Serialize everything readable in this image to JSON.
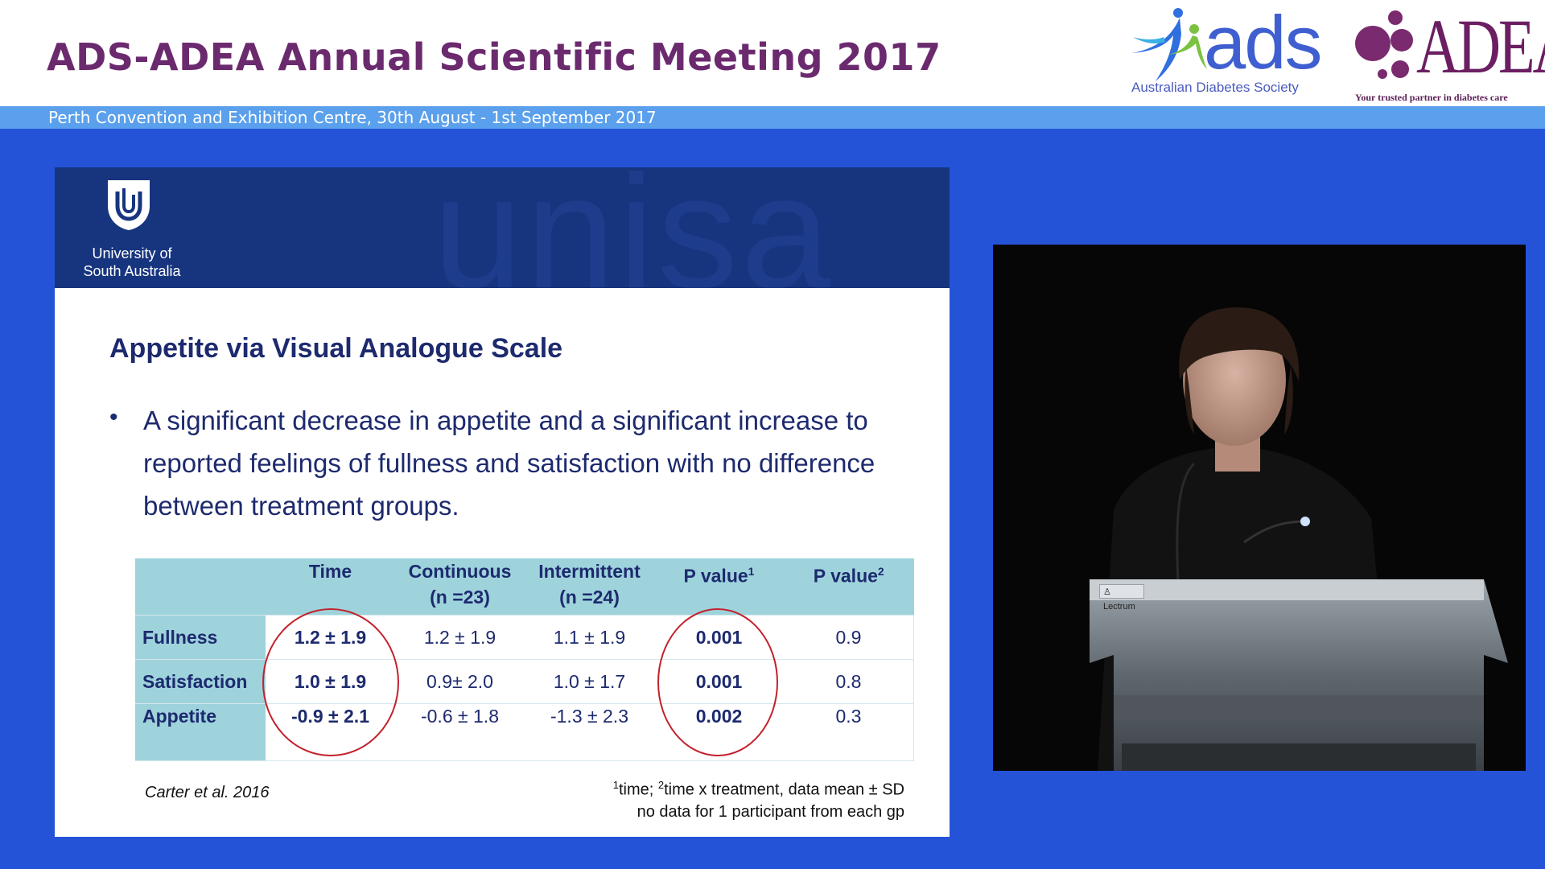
{
  "header": {
    "title": "ADS-ADEA Annual Scientific Meeting 2017",
    "venue": "Perth Convention and Exhibition Centre, 30th August - 1st September 2017",
    "title_color": "#6b2a6e",
    "band_color": "#5aa0ec"
  },
  "logos": {
    "ads_word": "ads",
    "ads_subtitle": "Australian Diabetes Society",
    "adea_word": "ADEA",
    "adea_tagline": "Your trusted partner in diabetes care"
  },
  "slide": {
    "university": "University of South Australia",
    "watermark": "unisa",
    "title": "Appetite via Visual Analogue Scale",
    "bullet": "A significant decrease in appetite and a significant increase to reported feelings of fullness and satisfaction with no difference between treatment groups.",
    "table": {
      "headers": [
        {
          "main": "",
          "sub": "",
          "sup": ""
        },
        {
          "main": "Time",
          "sub": "",
          "sup": ""
        },
        {
          "main": "Continuous",
          "sub": "(n =23)",
          "sup": ""
        },
        {
          "main": "Intermittent",
          "sub": "(n =24)",
          "sup": ""
        },
        {
          "main": "P value",
          "sub": "",
          "sup": "1"
        },
        {
          "main": "P value",
          "sub": "",
          "sup": "2"
        }
      ],
      "rows": [
        {
          "label": "Fullness",
          "time": "1.2 ± 1.9",
          "continuous": "1.2 ± 1.9",
          "intermittent": "1.1 ± 1.9",
          "p1": "0.001",
          "p2": "0.9"
        },
        {
          "label": "Satisfaction",
          "time": "1.0 ± 1.9",
          "continuous": "0.9± 2.0",
          "intermittent": "1.0 ± 1.7",
          "p1": "0.001",
          "p2": "0.8"
        },
        {
          "label": "Appetite",
          "time": "-0.9 ± 2.1",
          "continuous": "-0.6 ± 1.8",
          "intermittent": "-1.3 ± 2.3",
          "p1": "0.002",
          "p2": "0.3"
        }
      ]
    },
    "citation": "Carter et al. 2016",
    "footnote_sup1": "1",
    "footnote_part1": "time; ",
    "footnote_sup2": "2",
    "footnote_part2": "time x treatment, data mean ± SD",
    "footnote_line2": "no data for 1 participant from each gp"
  },
  "video": {
    "lectern_label": "Lectrum"
  },
  "icons": {
    "university": "unisa-shield-icon",
    "ads": "ads-figures-icon",
    "adea": "adea-dots-icon",
    "lectern": "person-icon"
  },
  "colors": {
    "background": "#2553d8",
    "slide_banner": "#17357f",
    "table_header": "#9ed3dc",
    "highlight_circle": "#c3212b"
  }
}
